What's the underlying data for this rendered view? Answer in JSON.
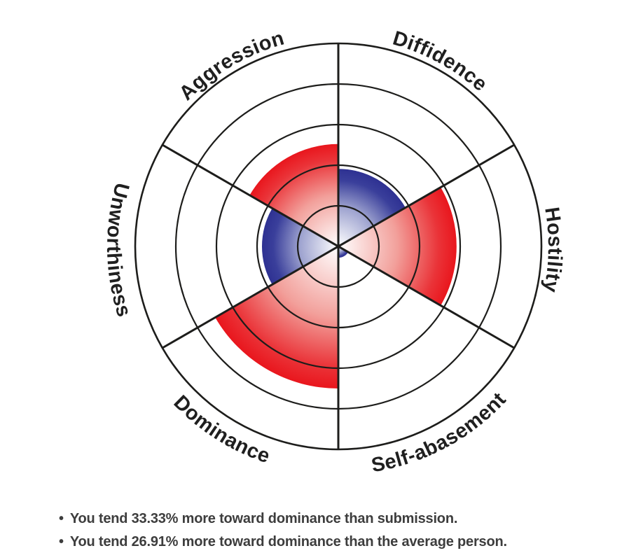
{
  "page": {
    "background": "#ffffff"
  },
  "chart_data": {
    "type": "polar-area",
    "rings": 5,
    "max_value": 5,
    "sector_span_deg": 60,
    "angles_measured": "clockwise from 12 o'clock",
    "grid": true,
    "sectors": [
      {
        "label": "Diffidence",
        "start_deg": 0,
        "value": 1.91,
        "color": "blue"
      },
      {
        "label": "Hostility",
        "start_deg": 60,
        "value": 2.91,
        "color": "red"
      },
      {
        "label": "Self-abasement",
        "start_deg": 120,
        "value": 0.28,
        "color": "blue"
      },
      {
        "label": "Dominance",
        "start_deg": 180,
        "value": 3.5,
        "color": "red"
      },
      {
        "label": "Unworthiness",
        "start_deg": 240,
        "value": 1.88,
        "color": "blue"
      },
      {
        "label": "Aggression",
        "start_deg": 300,
        "value": 2.52,
        "color": "red"
      }
    ],
    "palette": {
      "red": "#e9161d",
      "blue": "#2e3192",
      "red_stops": [
        [
          0,
          "#ffffff"
        ],
        [
          0.5,
          "#f2a09b"
        ],
        [
          0.85,
          "#ea3338"
        ],
        [
          1,
          "#e9161d"
        ]
      ],
      "blue_stops": [
        [
          0,
          "#ffffff"
        ],
        [
          0.5,
          "#9fa4d0"
        ],
        [
          0.85,
          "#3a3f9b"
        ],
        [
          1,
          "#2e3192"
        ]
      ],
      "line_color": "#1d1d1b",
      "label_color": "#1f1f1f"
    }
  },
  "summary": {
    "bullet_glyph": "•",
    "bullets": [
      "You tend 33.33% more toward dominance than submission.",
      "You tend 26.91% more toward dominance than the average person."
    ],
    "text_color": "#3d3d3d"
  }
}
